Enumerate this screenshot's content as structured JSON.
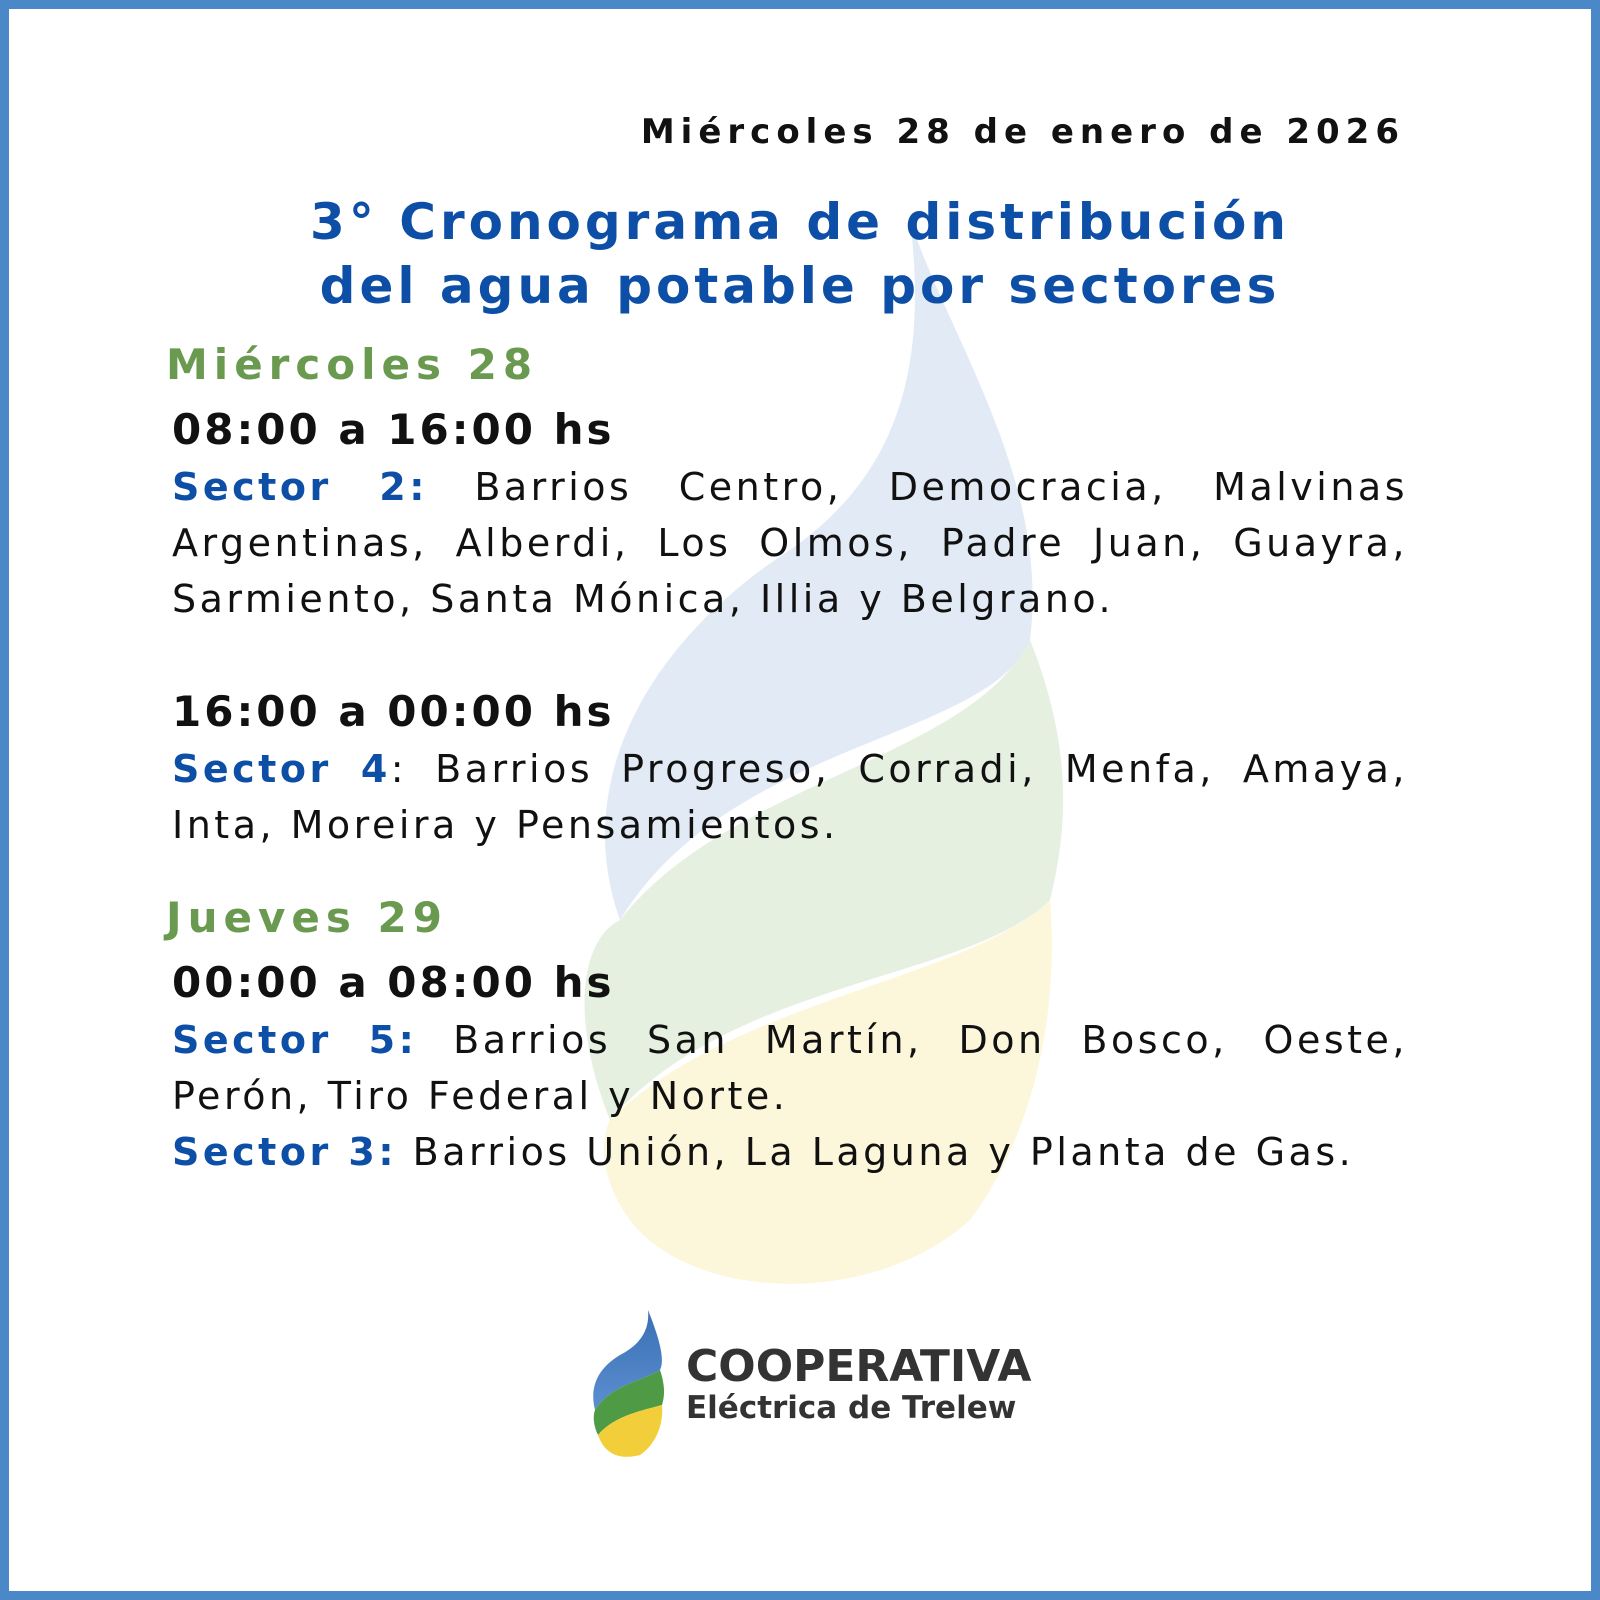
{
  "header": {
    "date": "Miércoles 28 de enero de 2026",
    "title_line1": "3° Cronograma de distribución",
    "title_line2": "del agua potable por sectores"
  },
  "days": [
    {
      "label": "Miércoles 28",
      "slots": [
        {
          "time": "08:00 a 16:00 hs",
          "entries": [
            {
              "sector": "Sector 2:",
              "text": " Barrios Centro, Democracia, Malvinas Argentinas, Alberdi, Los Olmos, Padre Juan, Guayra, Sarmiento, Santa Mónica, Illia y Belgrano."
            }
          ]
        },
        {
          "time": "16:00 a 00:00 hs",
          "entries": [
            {
              "sector": "Sector 4",
              "text": ": Barrios Progreso, Corradi, Menfa, Amaya, Inta, Moreira y Pensamientos."
            }
          ]
        }
      ]
    },
    {
      "label": "Jueves 29",
      "slots": [
        {
          "time": "00:00 a 08:00 hs",
          "entries": [
            {
              "sector": "Sector 5:",
              "text": " Barrios San Martín, Don Bosco, Oeste, Perón, Tiro Federal y Norte."
            },
            {
              "sector": "Sector 3:",
              "text": " Barrios Unión, La Laguna y Planta de Gas."
            }
          ]
        }
      ]
    }
  ],
  "logo": {
    "line1": "COOPERATIVA",
    "line2": "Eléctrica de Trelew",
    "icon": "flame-leaf-logo-icon"
  },
  "colors": {
    "border": "#4a88c7",
    "title": "#0d4ea6",
    "day": "#6a9a50",
    "text": "#111111"
  }
}
